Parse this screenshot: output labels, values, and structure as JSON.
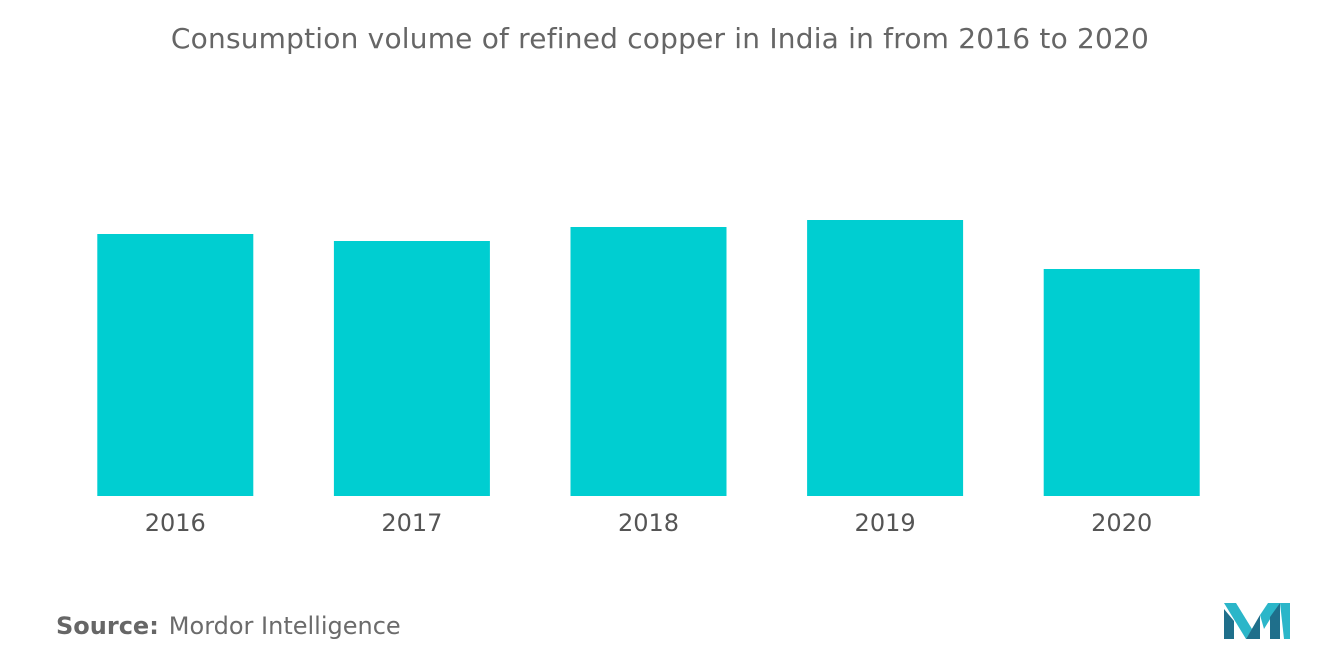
{
  "chart_data": {
    "type": "bar",
    "title": "Consumption volume of refined copper in India in from 2016 to 2020",
    "categories": [
      "2016",
      "2017",
      "2018",
      "2019",
      "2020"
    ],
    "values": [
      262,
      255,
      269,
      276,
      227
    ],
    "xlabel": "",
    "ylabel": "",
    "ylim": [
      0,
      300
    ],
    "grid": false,
    "legend": "none",
    "bar_color": "#00CED1"
  },
  "source": {
    "label": "Source:",
    "text": "Mordor Intelligence"
  },
  "logo": {
    "icon": "mordor-intelligence-logo-icon",
    "colors": [
      "#1f6f8b",
      "#2bb6c9"
    ]
  }
}
